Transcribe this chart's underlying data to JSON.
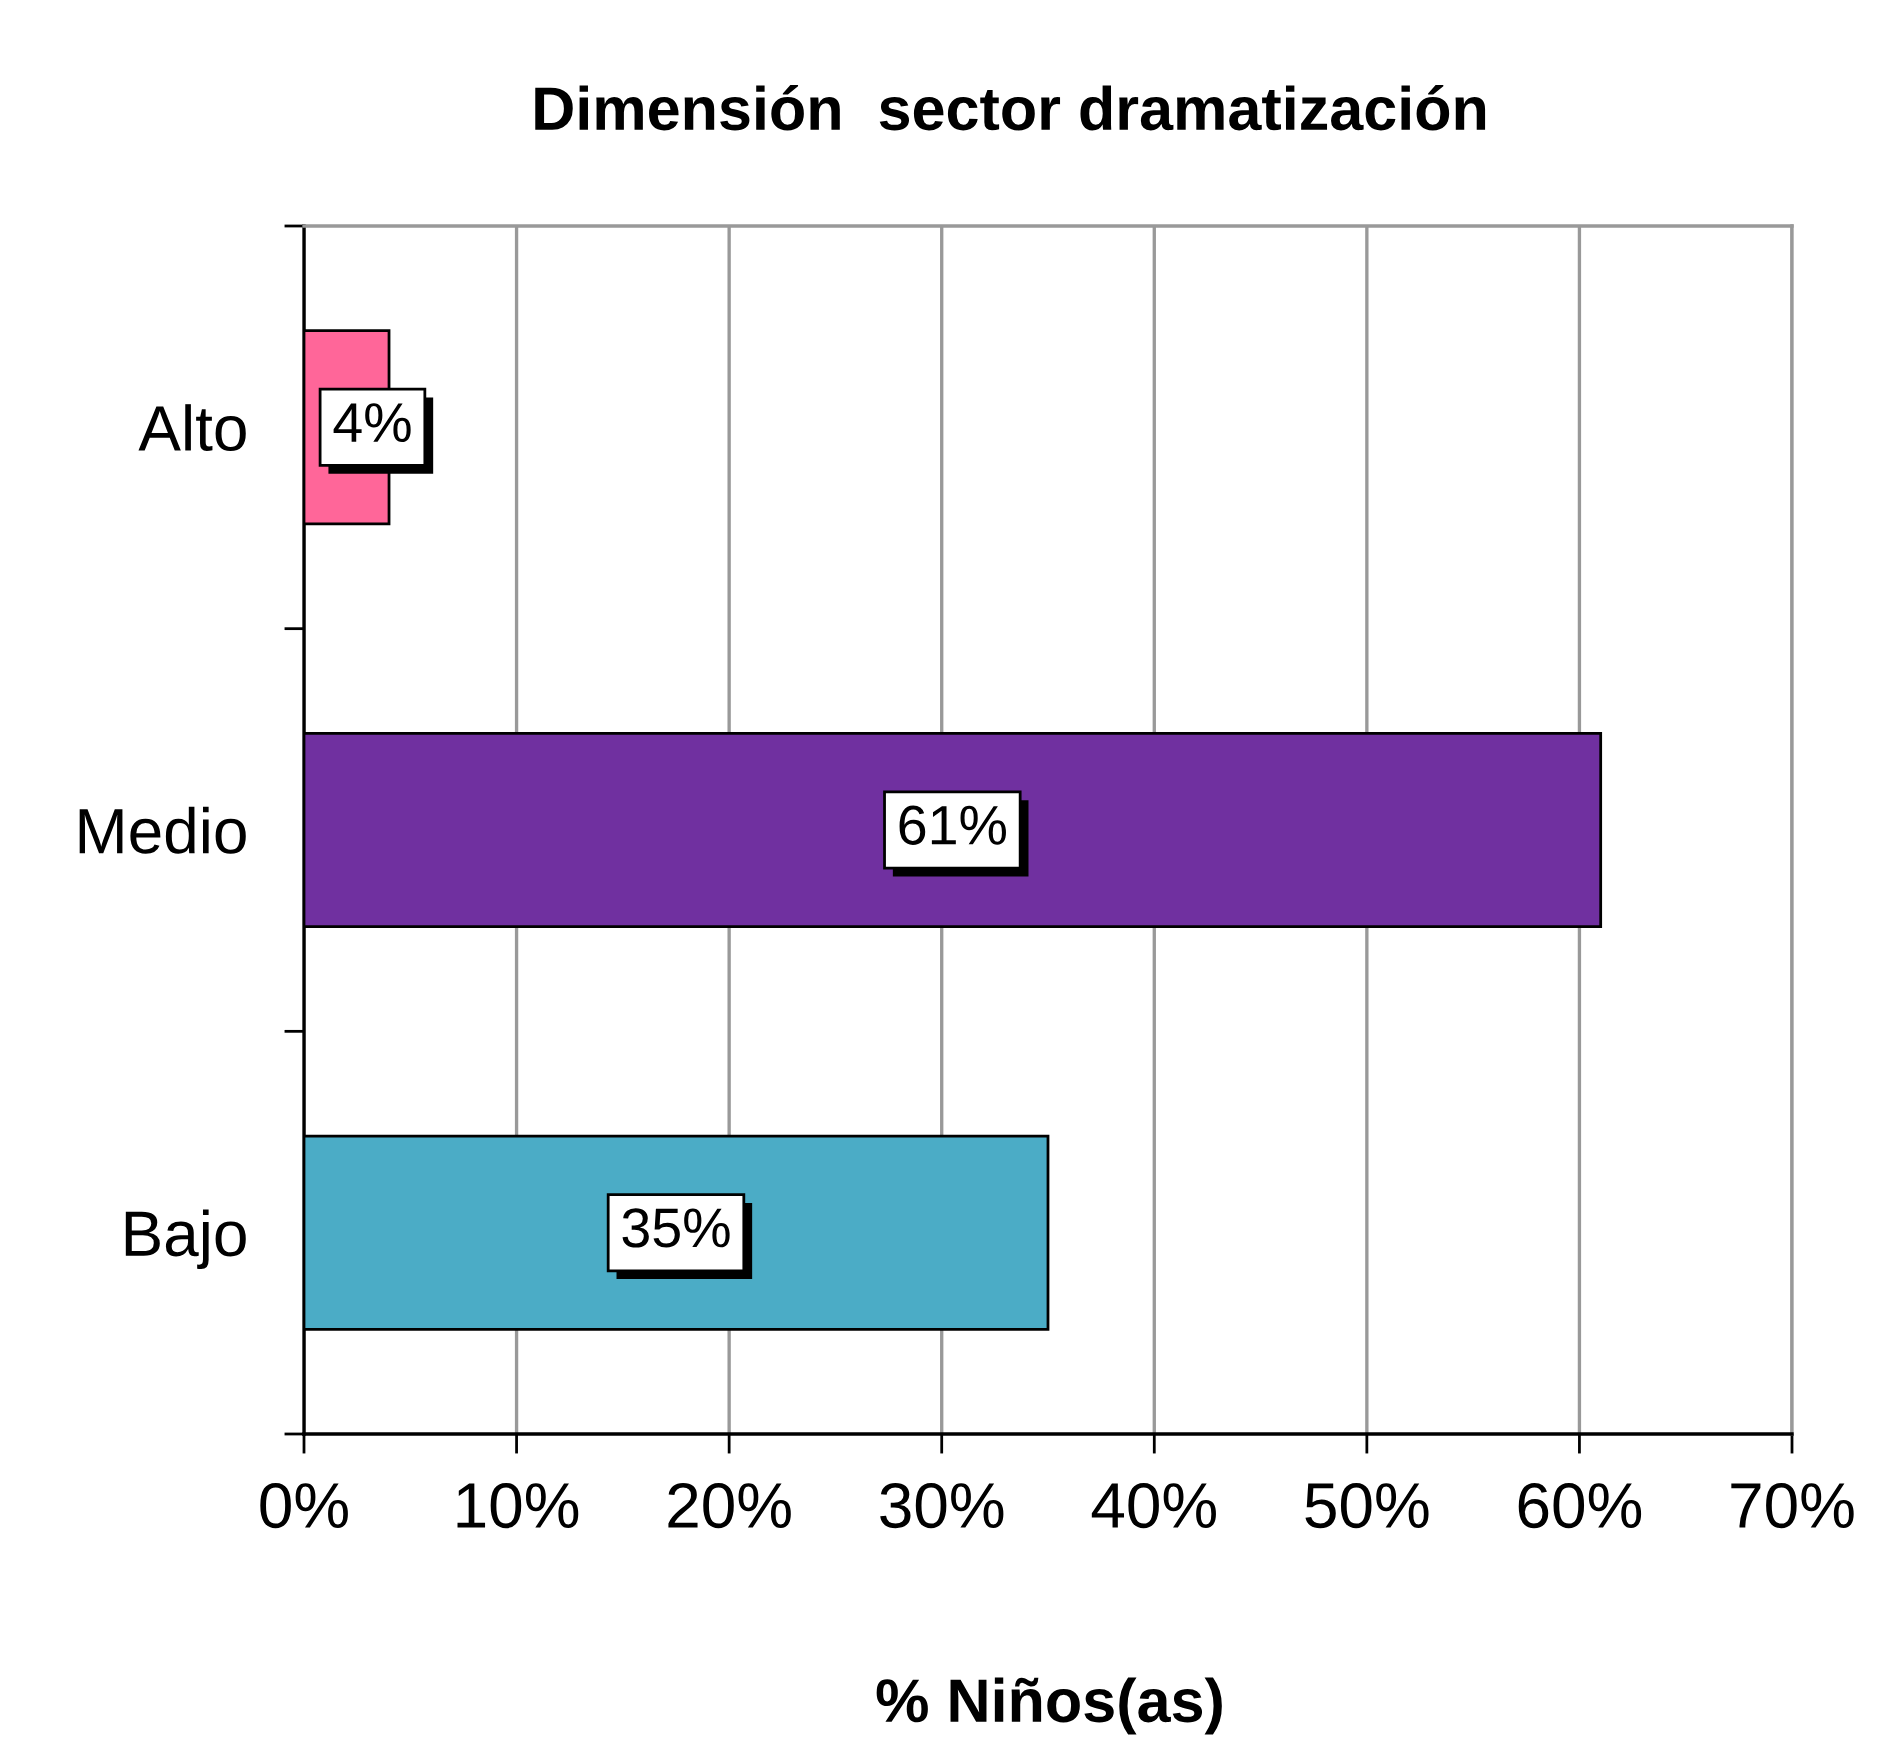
{
  "chart_data": {
    "type": "bar",
    "orientation": "horizontal",
    "title": "Dimensión  sector dramatización",
    "xlabel": "% Niños(as)",
    "categories": [
      "Alto",
      "Medio",
      "Bajo"
    ],
    "values": [
      4,
      61,
      35
    ],
    "colors": [
      "#ff6699",
      "#7030a0",
      "#4bacc6"
    ],
    "value_labels": [
      "4%",
      "61%",
      "35%"
    ],
    "xlim": [
      0,
      70
    ],
    "xticks": [
      {
        "value": 0,
        "label": "0%"
      },
      {
        "value": 10,
        "label": "10%"
      },
      {
        "value": 20,
        "label": "20%"
      },
      {
        "value": 30,
        "label": "30%"
      },
      {
        "value": 40,
        "label": "40%"
      },
      {
        "value": 50,
        "label": "50%"
      },
      {
        "value": 60,
        "label": "60%"
      },
      {
        "value": 70,
        "label": "70%"
      }
    ],
    "grid": "x"
  }
}
